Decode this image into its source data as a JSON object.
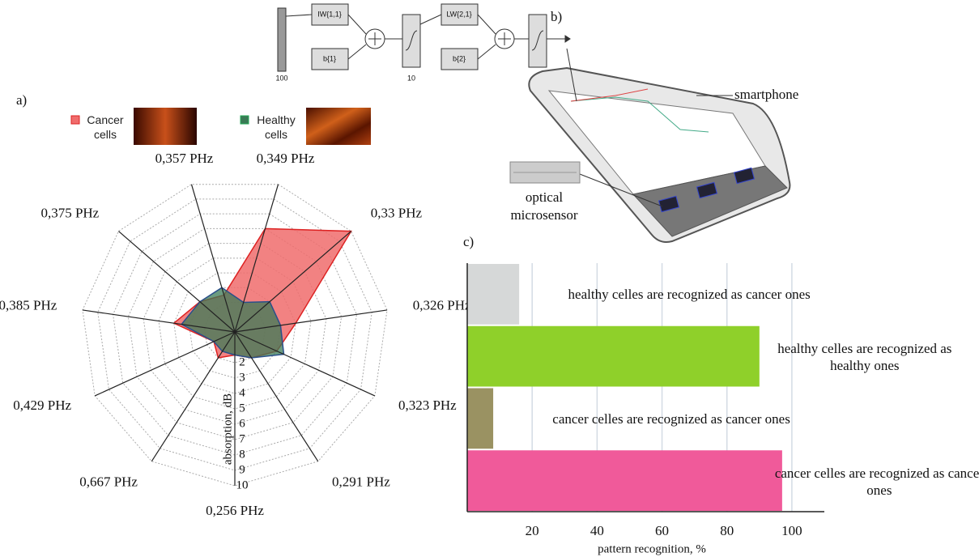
{
  "labels": {
    "a": "a)",
    "b": "b)",
    "c": "c)",
    "smartphone": "smartphone",
    "sensor": "optical microsensor"
  },
  "network": {
    "input": "100",
    "w1": "IW{1,1}",
    "b1": "b{1}",
    "hidden": "10",
    "w2": "LW{2,1}",
    "b2": "b{2}"
  },
  "chart_data": [
    {
      "type": "radar",
      "categories": [
        "0,349 PHz",
        "0,33 PHz",
        "0,326 PHz",
        "0,323 PHz",
        "0,291 PHz",
        "0,256 PHz",
        "0,667 PHz",
        "0,429 PHz",
        "0,385 PHz",
        "0,375 PHz",
        "0,357 PHz"
      ],
      "series": [
        {
          "name": "Cancer cells",
          "color": "#f06c6c",
          "values": [
            7,
            10,
            4,
            3,
            2,
            1.5,
            2,
            1.5,
            4,
            3,
            2.5
          ]
        },
        {
          "name": "Healthy cells",
          "color": "#3a7a55",
          "values": [
            2,
            3,
            3,
            3.5,
            2,
            1.5,
            1.5,
            1.5,
            3.5,
            3,
            3
          ]
        }
      ],
      "rlabel": "absorption, dB",
      "rlim": [
        0,
        10
      ],
      "rticks": [
        2,
        3,
        4,
        5,
        6,
        7,
        8,
        9,
        10
      ],
      "grid": true
    },
    {
      "type": "bar",
      "orientation": "horizontal",
      "categories": [
        "healthy celles are recognized as cancer ones",
        "healthy celles are recognized as healthy ones",
        "cancer celles are recognized as cancer ones",
        "cancer celles are recognized as cancer ones"
      ],
      "values": [
        16,
        90,
        8,
        97
      ],
      "colors": [
        "#d6d8d8",
        "#8fd02a",
        "#9a9262",
        "#f05a9a"
      ],
      "xlabel": "pattern recognition, %",
      "xlim": [
        0,
        110
      ],
      "xticks": [
        20,
        40,
        60,
        80,
        100
      ],
      "grid": true
    }
  ]
}
